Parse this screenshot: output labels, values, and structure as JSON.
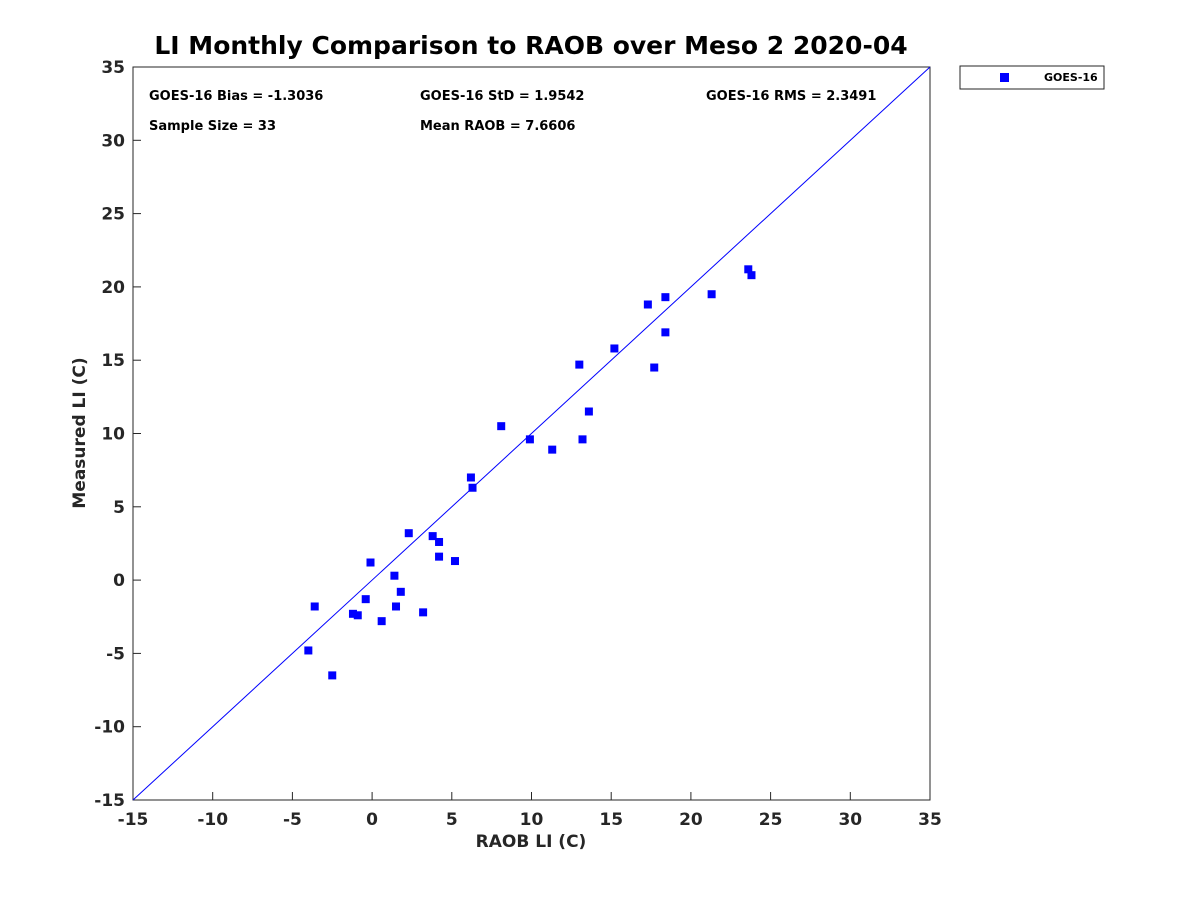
{
  "chart_data": {
    "type": "scatter",
    "title": "LI Monthly Comparison to RAOB over Meso 2 2020-04",
    "xlabel": "RAOB LI (C)",
    "ylabel": "Measured LI (C)",
    "xlim": [
      -15,
      35
    ],
    "ylim": [
      -15,
      35
    ],
    "xticks": [
      -15,
      -10,
      -5,
      0,
      5,
      10,
      15,
      20,
      25,
      30,
      35
    ],
    "yticks": [
      -15,
      -10,
      -5,
      0,
      5,
      10,
      15,
      20,
      25,
      30,
      35
    ],
    "grid": false,
    "legend_position": "outside-top-right",
    "reference_line": {
      "name": "1:1 line",
      "from": [
        -15,
        -15
      ],
      "to": [
        35,
        35
      ],
      "color": "#0000ff"
    },
    "series": [
      {
        "name": "GOES-16",
        "marker": "square",
        "color": "#0000ff",
        "points": [
          [
            -3.6,
            -1.8
          ],
          [
            -4.0,
            -4.8
          ],
          [
            -2.5,
            -6.5
          ],
          [
            -1.2,
            -2.3
          ],
          [
            -0.9,
            -2.4
          ],
          [
            -0.4,
            -1.3
          ],
          [
            -0.1,
            1.2
          ],
          [
            0.6,
            -2.8
          ],
          [
            1.4,
            0.3
          ],
          [
            1.5,
            -1.8
          ],
          [
            1.8,
            -0.8
          ],
          [
            2.3,
            3.2
          ],
          [
            3.2,
            -2.2
          ],
          [
            3.8,
            3.0
          ],
          [
            4.2,
            2.6
          ],
          [
            4.2,
            1.6
          ],
          [
            5.2,
            1.3
          ],
          [
            6.2,
            7.0
          ],
          [
            6.3,
            6.3
          ],
          [
            8.1,
            10.5
          ],
          [
            9.9,
            9.6
          ],
          [
            11.3,
            8.9
          ],
          [
            13.0,
            14.7
          ],
          [
            13.2,
            9.6
          ],
          [
            13.6,
            11.5
          ],
          [
            15.2,
            15.8
          ],
          [
            17.3,
            18.8
          ],
          [
            17.7,
            14.5
          ],
          [
            18.4,
            19.3
          ],
          [
            18.4,
            16.9
          ],
          [
            21.3,
            19.5
          ],
          [
            23.6,
            21.2
          ],
          [
            23.8,
            20.8
          ]
        ]
      }
    ],
    "annotations": {
      "bias": "GOES-16 Bias = -1.3036",
      "std": "GOES-16 StD = 1.9542",
      "rms": "GOES-16 RMS = 2.3491",
      "sample_size": "Sample Size = 33",
      "mean_raob": "Mean RAOB = 7.6606"
    }
  }
}
